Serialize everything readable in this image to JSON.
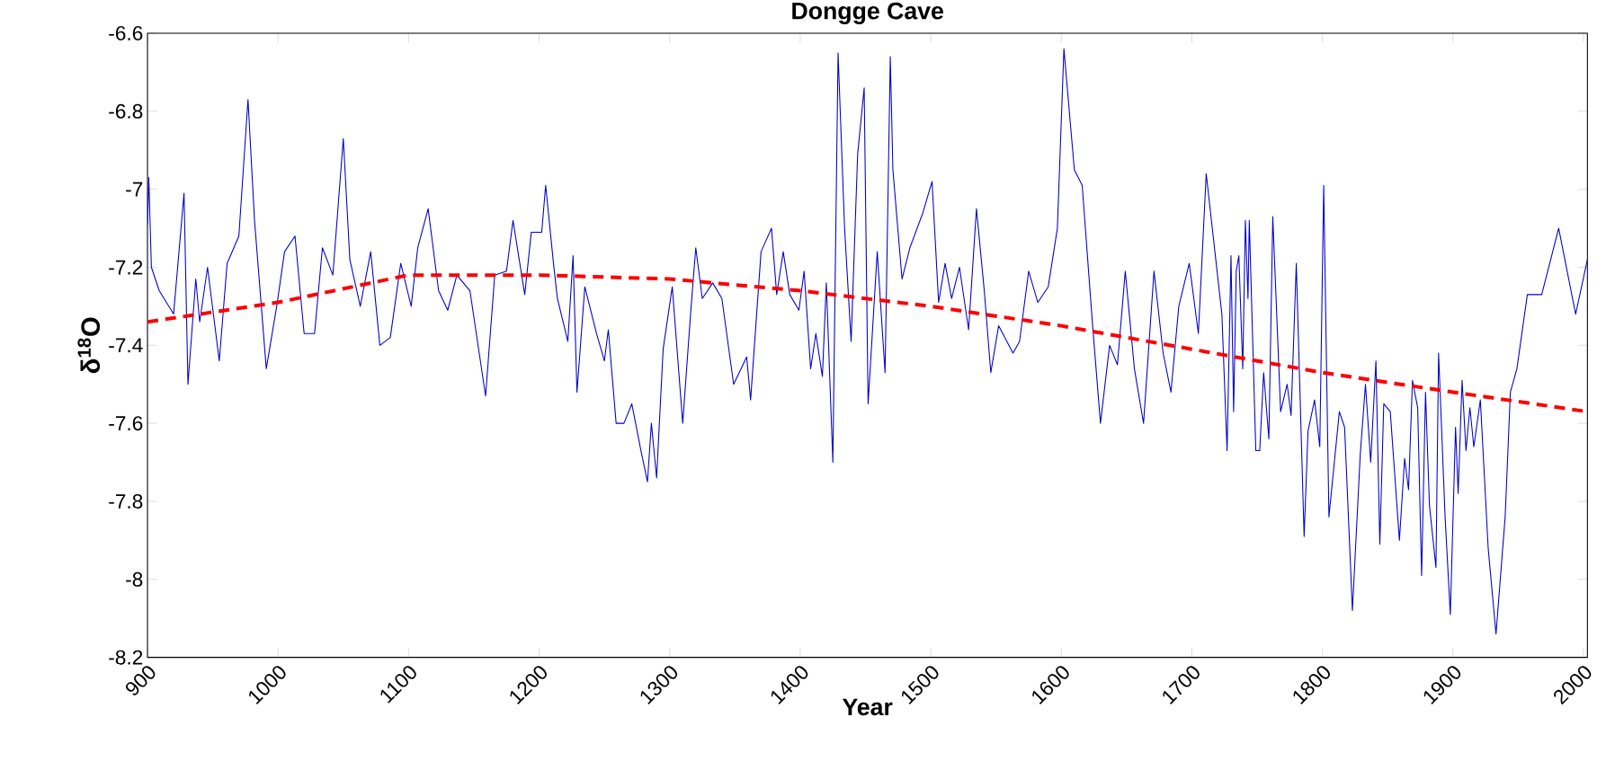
{
  "chart_data": {
    "type": "line",
    "title": "Dongge Cave",
    "xlabel": "Year",
    "ylabel": "δ$^{18}$O",
    "xlim": [
      900,
      2003
    ],
    "ylim": [
      -8.2,
      -6.6
    ],
    "xticks": [
      900,
      1000,
      1100,
      1200,
      1300,
      1400,
      1500,
      1600,
      1700,
      1800,
      1900,
      2000
    ],
    "yticks": [
      -8.2,
      -8,
      -7.8,
      -7.6,
      -7.4,
      -7.2,
      -7,
      -6.8,
      -6.6
    ],
    "marker": "none",
    "line_style": "solid",
    "series": [
      {
        "color": "#0000cc",
        "x": [
          900,
          901,
          903,
          909,
          920,
          928,
          931,
          937,
          940,
          946,
          955,
          961,
          970,
          977,
          982,
          991,
          999,
          1005,
          1013,
          1020,
          1028,
          1034,
          1042,
          1050,
          1055,
          1063,
          1071,
          1078,
          1086,
          1094,
          1102,
          1107,
          1115,
          1123,
          1130,
          1137,
          1147,
          1159,
          1166,
          1175,
          1180,
          1189,
          1194,
          1202,
          1205,
          1211,
          1214,
          1222,
          1226,
          1229,
          1235,
          1244,
          1250,
          1253,
          1259,
          1265,
          1271,
          1278,
          1283,
          1286,
          1290,
          1295,
          1302,
          1310,
          1316,
          1320,
          1325,
          1333,
          1340,
          1349,
          1359,
          1362,
          1370,
          1378,
          1382,
          1387,
          1392,
          1399,
          1403,
          1408,
          1412,
          1417,
          1420,
          1425,
          1429,
          1434,
          1439,
          1444,
          1449,
          1452,
          1459,
          1465,
          1469,
          1471,
          1478,
          1484,
          1494,
          1501,
          1506,
          1511,
          1516,
          1522,
          1529,
          1535,
          1541,
          1546,
          1552,
          1563,
          1568,
          1575,
          1582,
          1590,
          1597,
          1602,
          1610,
          1616,
          1624,
          1630,
          1637,
          1643,
          1649,
          1656,
          1663,
          1671,
          1678,
          1684,
          1690,
          1698,
          1705,
          1711,
          1717,
          1723,
          1727,
          1730,
          1732,
          1734,
          1736,
          1739,
          1741,
          1743,
          1744,
          1749,
          1752,
          1755,
          1759,
          1762,
          1768,
          1773,
          1776,
          1780,
          1786,
          1789,
          1794,
          1798,
          1801,
          1805,
          1813,
          1817,
          1823,
          1829,
          1833,
          1837,
          1841,
          1844,
          1847,
          1852,
          1859,
          1863,
          1866,
          1869,
          1873,
          1876,
          1879,
          1882,
          1887,
          1889,
          1894,
          1898,
          1902,
          1904,
          1907,
          1910,
          1913,
          1916,
          1921,
          1927,
          1933,
          1940,
          1944,
          1949,
          1957,
          1962,
          1968,
          1981,
          1994,
          2003
        ],
        "values": [
          -7.09,
          -6.97,
          -7.2,
          -7.26,
          -7.32,
          -7.01,
          -7.5,
          -7.23,
          -7.34,
          -7.2,
          -7.44,
          -7.19,
          -7.12,
          -6.77,
          -7.08,
          -7.46,
          -7.3,
          -7.16,
          -7.12,
          -7.37,
          -7.37,
          -7.15,
          -7.22,
          -6.87,
          -7.18,
          -7.3,
          -7.16,
          -7.4,
          -7.38,
          -7.19,
          -7.3,
          -7.15,
          -7.05,
          -7.26,
          -7.31,
          -7.22,
          -7.26,
          -7.53,
          -7.22,
          -7.21,
          -7.08,
          -7.27,
          -7.11,
          -7.11,
          -6.99,
          -7.19,
          -7.28,
          -7.39,
          -7.17,
          -7.52,
          -7.25,
          -7.37,
          -7.44,
          -7.36,
          -7.6,
          -7.6,
          -7.55,
          -7.67,
          -7.75,
          -7.6,
          -7.74,
          -7.41,
          -7.25,
          -7.6,
          -7.32,
          -7.15,
          -7.28,
          -7.24,
          -7.28,
          -7.5,
          -7.43,
          -7.54,
          -7.16,
          -7.1,
          -7.27,
          -7.16,
          -7.27,
          -7.31,
          -7.21,
          -7.46,
          -7.37,
          -7.48,
          -7.24,
          -7.7,
          -6.65,
          -7.1,
          -7.39,
          -6.91,
          -6.74,
          -7.55,
          -7.16,
          -7.47,
          -6.66,
          -6.95,
          -7.23,
          -7.15,
          -7.06,
          -6.98,
          -7.29,
          -7.19,
          -7.28,
          -7.2,
          -7.36,
          -7.05,
          -7.26,
          -7.47,
          -7.35,
          -7.42,
          -7.39,
          -7.21,
          -7.29,
          -7.25,
          -7.1,
          -6.64,
          -6.95,
          -6.99,
          -7.35,
          -7.6,
          -7.4,
          -7.45,
          -7.21,
          -7.46,
          -7.6,
          -7.21,
          -7.42,
          -7.52,
          -7.3,
          -7.19,
          -7.37,
          -6.96,
          -7.14,
          -7.32,
          -7.67,
          -7.17,
          -7.57,
          -7.21,
          -7.17,
          -7.46,
          -7.08,
          -7.28,
          -7.08,
          -7.67,
          -7.67,
          -7.47,
          -7.64,
          -7.07,
          -7.57,
          -7.5,
          -7.58,
          -7.19,
          -7.89,
          -7.62,
          -7.54,
          -7.66,
          -6.99,
          -7.84,
          -7.57,
          -7.61,
          -8.08,
          -7.68,
          -7.5,
          -7.7,
          -7.44,
          -7.91,
          -7.55,
          -7.57,
          -7.9,
          -7.69,
          -7.77,
          -7.49,
          -7.56,
          -7.99,
          -7.52,
          -7.81,
          -7.97,
          -7.42,
          -7.84,
          -8.09,
          -7.61,
          -7.78,
          -7.49,
          -7.67,
          -7.56,
          -7.66,
          -7.54,
          -7.92,
          -8.14,
          -7.84,
          -7.52,
          -7.46,
          -7.27,
          -7.27,
          -7.27,
          -7.1,
          -7.32,
          -7.18
        ]
      },
      {
        "type": "line",
        "color": "#ff0000",
        "line_style": "dashed",
        "x": [
          900,
          1000,
          1100,
          1200,
          1300,
          1400,
          1500,
          1600,
          1700,
          1800,
          1900,
          2003
        ],
        "values": [
          -7.34,
          -7.29,
          -7.22,
          -7.22,
          -7.23,
          -7.26,
          -7.3,
          -7.35,
          -7.41,
          -7.47,
          -7.52,
          -7.57
        ]
      }
    ]
  }
}
